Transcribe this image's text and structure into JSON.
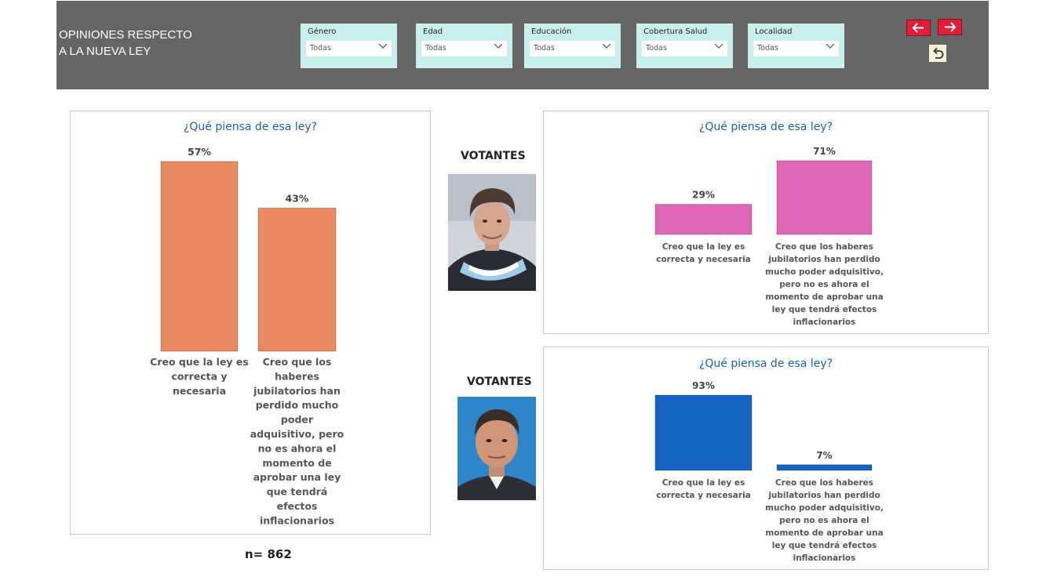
{
  "header": {
    "title_line1": "OPINIONES RESPECTO",
    "title_line2": "A LA NUEVA LEY",
    "filters": [
      {
        "label": "Género",
        "value": "Todas"
      },
      {
        "label": "Edad",
        "value": "Todas"
      },
      {
        "label": "Educación",
        "value": "Todas"
      },
      {
        "label": "Cobertura Salud",
        "value": "Todas"
      },
      {
        "label": "Localidad",
        "value": "Todas"
      }
    ]
  },
  "sections": {
    "votantes_1": "VOTANTES",
    "votantes_2": "VOTANTES"
  },
  "sample": "n= 862",
  "colors": {
    "header_bg": "#666666",
    "slicer_bg": "#c8f0ee",
    "nav_button": "#e01e3a",
    "title_blue": "#1c62b0",
    "bar_orange": "#e98a60",
    "bar_pink": "#e066b8",
    "bar_blue": "#1565c0"
  },
  "icons": [
    "arrow-left-icon",
    "arrow-right-icon",
    "undo-icon",
    "chevron-down-icon"
  ],
  "chart_data": [
    {
      "type": "bar",
      "title": "¿Qué piensa de esa ley?",
      "categories": [
        [
          "Creo que la ley es",
          "correcta y",
          "necesaria"
        ],
        [
          "Creo que los",
          "haberes",
          "jubilatorios han",
          "perdido mucho",
          "poder",
          "adquisitivo, pero",
          "no es ahora el",
          "momento de",
          "aprobar una ley",
          "que tendrá",
          "efectos",
          "inflacionarios"
        ]
      ],
      "values": [
        57,
        43
      ],
      "data_labels": [
        "57%",
        "43%"
      ],
      "ylim": [
        0,
        57
      ],
      "color": "#e98a60",
      "grid": false
    },
    {
      "type": "bar",
      "title": "¿Qué piensa de esa ley?",
      "categories": [
        [
          "Creo que la ley es",
          "correcta y necesaria"
        ],
        [
          "Creo que los haberes",
          "jubilatorios han perdido",
          "mucho poder adquisitivo,",
          "pero no es ahora el",
          "momento de aprobar una",
          "ley que tendrá efectos",
          "inflacionarios"
        ]
      ],
      "values": [
        29,
        71
      ],
      "data_labels": [
        "29%",
        "71%"
      ],
      "ylim": [
        0,
        71
      ],
      "color": "#e066b8",
      "grid": false
    },
    {
      "type": "bar",
      "title": "¿Qué piensa de esa ley?",
      "categories": [
        [
          "Creo que la ley es",
          "correcta y necesaria"
        ],
        [
          "Creo que los haberes",
          "jubilatorios han perdido",
          "mucho poder adquisitivo,",
          "pero no es ahora el",
          "momento de aprobar una",
          "ley que tendrá efectos",
          "inflacionarios"
        ]
      ],
      "values": [
        93,
        7
      ],
      "data_labels": [
        "93%",
        "7%"
      ],
      "ylim": [
        0,
        93
      ],
      "color": "#1565c0",
      "grid": false
    }
  ]
}
